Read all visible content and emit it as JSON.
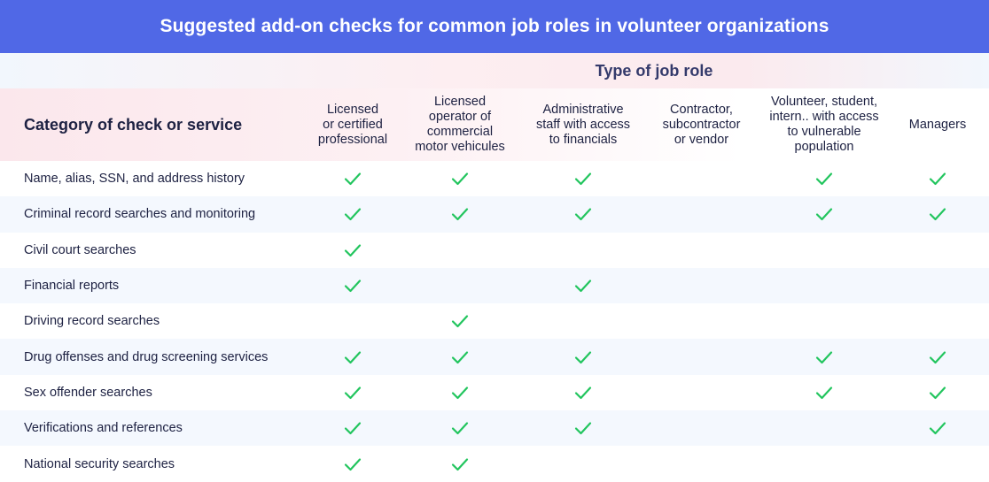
{
  "title": "Suggested add-on checks for common job roles in volunteer organizations",
  "group_label": "Type of job role",
  "category_header": "Category of check or service",
  "roles": [
    "Licensed\nor certified\nprofessional",
    "Licensed\noperator of\ncommercial\nmotor vehicules",
    "Administrative\nstaff with access\nto financials",
    "Contractor,\nsubcontractor\nor vendor",
    "Volunteer, student,\nintern.. with access\nto vulnerable\npopulation",
    "Managers"
  ],
  "check_color": "#22c55e",
  "check_icon": "checkmark-icon",
  "rows": [
    {
      "category": "Name, alias, SSN, and address history",
      "checks": [
        true,
        true,
        true,
        false,
        true,
        true
      ]
    },
    {
      "category": "Criminal record searches and monitoring",
      "checks": [
        true,
        true,
        true,
        false,
        true,
        true
      ]
    },
    {
      "category": "Civil court searches",
      "checks": [
        true,
        false,
        false,
        false,
        false,
        false
      ]
    },
    {
      "category": "Financial reports",
      "checks": [
        true,
        false,
        true,
        false,
        false,
        false
      ]
    },
    {
      "category": "Driving record searches",
      "checks": [
        false,
        true,
        false,
        false,
        false,
        false
      ]
    },
    {
      "category": "Drug offenses and drug screening services",
      "checks": [
        true,
        true,
        true,
        false,
        true,
        true
      ]
    },
    {
      "category": "Sex offender searches",
      "checks": [
        true,
        true,
        true,
        false,
        true,
        true
      ]
    },
    {
      "category": "Verifications and references",
      "checks": [
        true,
        true,
        true,
        false,
        false,
        true
      ]
    },
    {
      "category": "National security searches",
      "checks": [
        true,
        true,
        false,
        false,
        false,
        false
      ]
    }
  ]
}
